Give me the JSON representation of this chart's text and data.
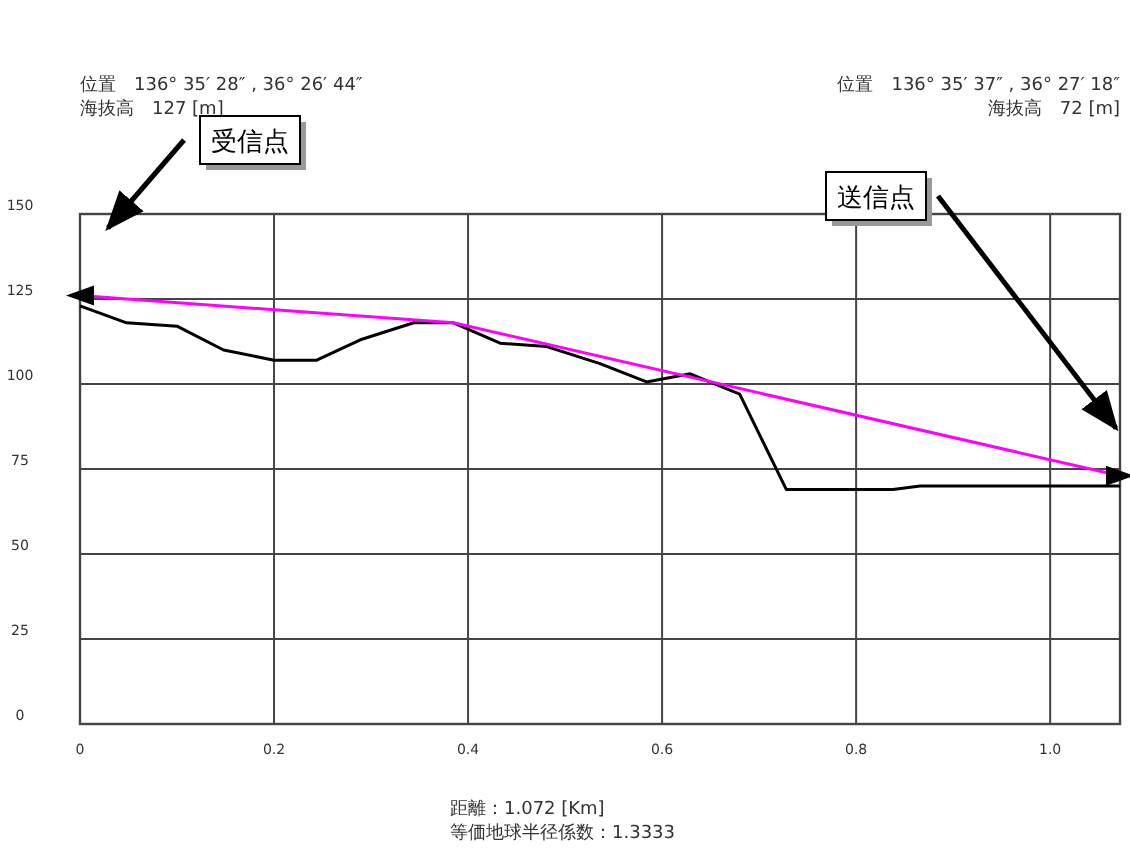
{
  "chart_data": {
    "type": "line",
    "annotations": [
      "位置　136° 35′ 28″ , 36° 26′ 44″\n海抜高　127 [m]",
      "位置　136° 35′ 37″ , 36° 27′ 18″\n海抜高　72 [m]",
      "距離：1.072 [Km]\n等価地球半径係数：1.3333",
      "受信点",
      "送信点"
    ],
    "series": [
      {
        "color": "#000000",
        "marker": "none",
        "x": [
          0,
          0.048,
          0.1,
          0.148,
          0.2,
          0.244,
          0.289,
          0.344,
          0.385,
          0.433,
          0.481,
          0.536,
          0.584,
          0.629,
          0.68,
          0.728,
          0.838,
          0.866,
          1.065,
          1.072
        ],
        "values": [
          123,
          118,
          117,
          110,
          107,
          107,
          113,
          118,
          118,
          112,
          111,
          106,
          100.6,
          103,
          97,
          69,
          69,
          70,
          70,
          70
        ]
      },
      {
        "color": "#ff00ff",
        "marker": "triangle",
        "x": [
          0,
          0.385,
          1.072
        ],
        "values": [
          126,
          118,
          73
        ]
      }
    ],
    "xlim": [
      0,
      1.072
    ],
    "xticks": [
      0,
      0.2,
      0.4,
      0.6,
      0.8,
      {
        "value": 1.0,
        "label": "1.0"
      }
    ],
    "ylim": [
      0,
      150
    ],
    "yticks": [
      0,
      25,
      50,
      75,
      100,
      125,
      150
    ],
    "grid": true
  }
}
